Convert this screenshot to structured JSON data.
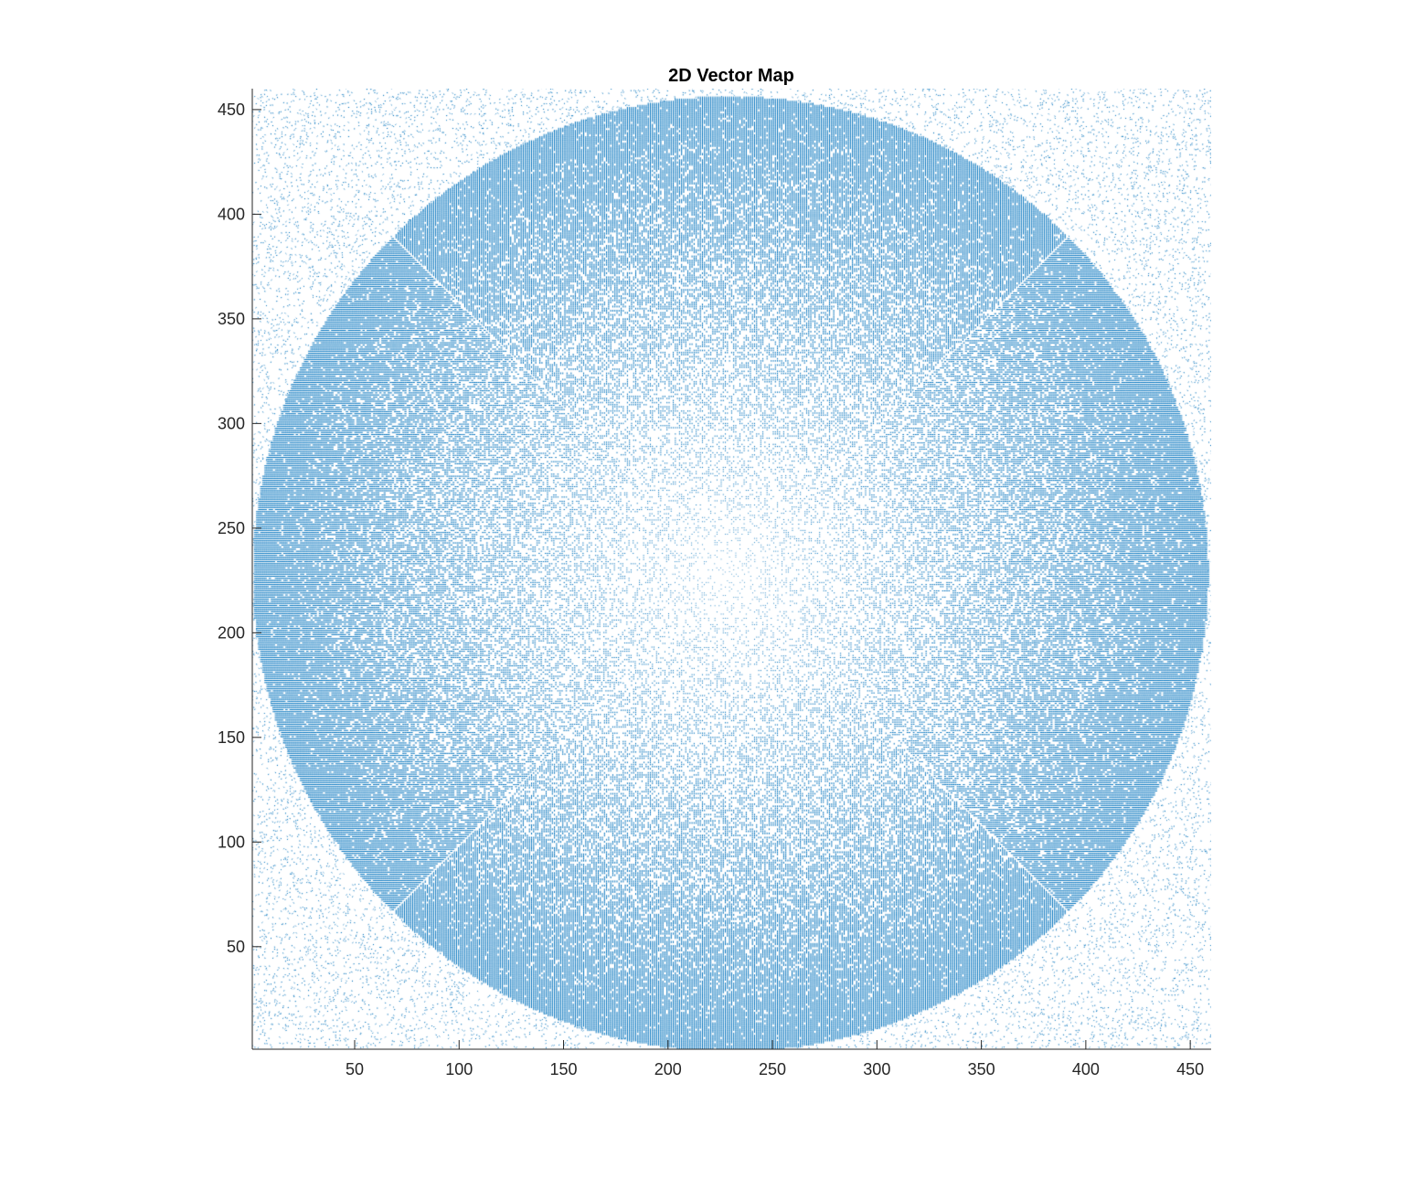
{
  "chart_data": {
    "type": "quiver",
    "title": "2D Vector Map",
    "xlabel": "",
    "ylabel": "",
    "xlim": [
      1,
      460
    ],
    "ylim": [
      1,
      460
    ],
    "x_ticks": [
      50,
      100,
      150,
      200,
      250,
      300,
      350,
      400,
      450
    ],
    "y_ticks": [
      50,
      100,
      150,
      200,
      250,
      300,
      350,
      400,
      450
    ],
    "grid": false,
    "box": "left-bottom axes only",
    "color": "#0072BD",
    "field": {
      "description": "radial vector field, dense inside a circular region, sparse noise outside",
      "center": [
        230,
        228
      ],
      "radius": 228,
      "grid_step": 1
    }
  }
}
